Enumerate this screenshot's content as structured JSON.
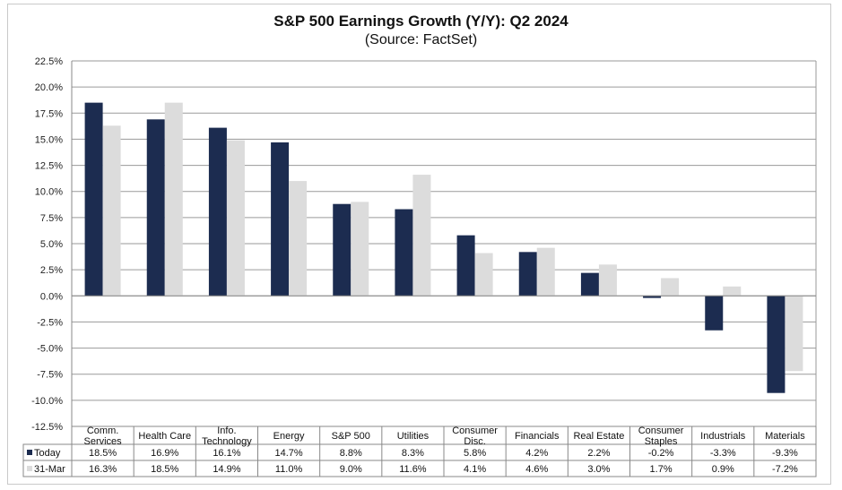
{
  "chart_data": {
    "type": "bar",
    "title": "S&P 500 Earnings Growth (Y/Y): Q2 2024",
    "subtitle": "(Source: FactSet)",
    "xlabel": "",
    "ylabel": "",
    "ylim": [
      -12.5,
      22.5
    ],
    "ytick_step": 2.5,
    "ytick_labels": [
      "22.5%",
      "20.0%",
      "17.5%",
      "15.0%",
      "12.5%",
      "10.0%",
      "7.5%",
      "5.0%",
      "2.5%",
      "0.0%",
      "-2.5%",
      "-5.0%",
      "-7.5%",
      "-10.0%",
      "-12.5%"
    ],
    "grid": true,
    "categories": [
      [
        "Comm.",
        "Services"
      ],
      [
        "Health Care"
      ],
      [
        "Info.",
        "Technology"
      ],
      [
        "Energy"
      ],
      [
        "S&P 500"
      ],
      [
        "Utilities"
      ],
      [
        "Consumer",
        "Disc."
      ],
      [
        "Financials"
      ],
      [
        "Real Estate"
      ],
      [
        "Consumer",
        "Staples"
      ],
      [
        "Industrials"
      ],
      [
        "Materials"
      ]
    ],
    "series": [
      {
        "name": "Today",
        "color": "#1c2c50",
        "values": [
          18.5,
          16.9,
          16.1,
          14.7,
          8.8,
          8.3,
          5.8,
          4.2,
          2.2,
          -0.2,
          -3.3,
          -9.3
        ],
        "labels": [
          "18.5%",
          "16.9%",
          "16.1%",
          "14.7%",
          "8.8%",
          "8.3%",
          "5.8%",
          "4.2%",
          "2.2%",
          "-0.2%",
          "-3.3%",
          "-9.3%"
        ]
      },
      {
        "name": "31-Mar",
        "color": "#dcdcdc",
        "values": [
          16.3,
          18.5,
          14.9,
          11.0,
          9.0,
          11.6,
          4.1,
          4.6,
          3.0,
          1.7,
          0.9,
          -7.2
        ],
        "labels": [
          "16.3%",
          "18.5%",
          "14.9%",
          "11.0%",
          "9.0%",
          "11.6%",
          "4.1%",
          "4.6%",
          "3.0%",
          "1.7%",
          "0.9%",
          "-7.2%"
        ]
      }
    ]
  }
}
